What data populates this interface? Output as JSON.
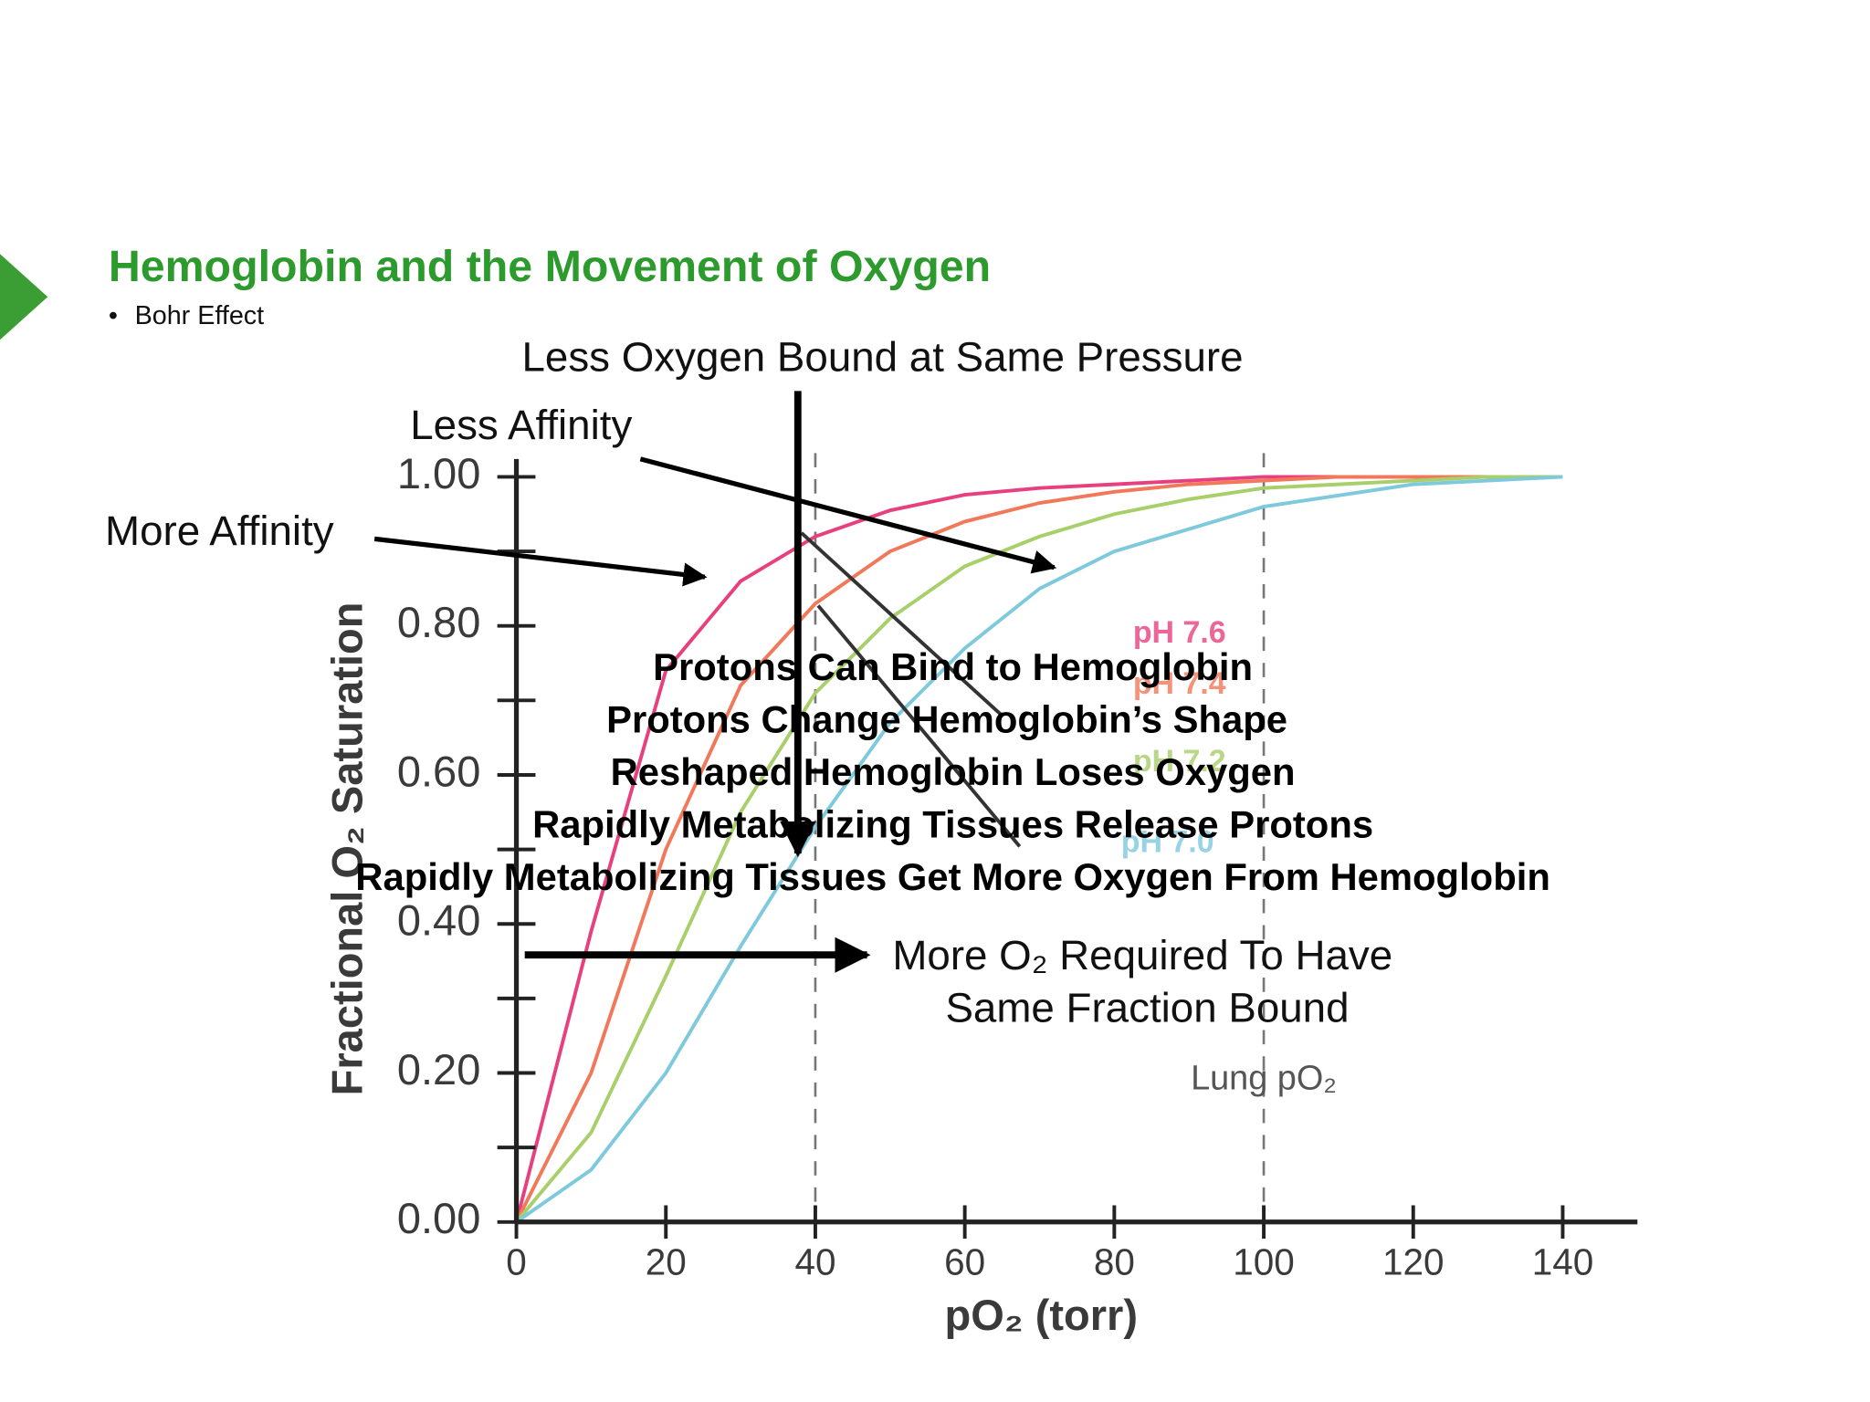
{
  "header": {
    "title": "Hemoglobin and the Movement of Oxygen",
    "bullet": "Bohr Effect"
  },
  "chart_data": {
    "type": "line",
    "x": [
      0,
      10,
      20,
      30,
      40,
      50,
      60,
      70,
      80,
      90,
      100,
      110,
      120,
      130,
      140
    ],
    "series": [
      {
        "name": "pH 7.6",
        "color": "#e8407f",
        "values": [
          0,
          0.39,
          0.74,
          0.86,
          0.92,
          0.955,
          0.976,
          0.985,
          0.99,
          0.995,
          1,
          1,
          1,
          1,
          1
        ]
      },
      {
        "name": "pH 7.4",
        "color": "#f2785a",
        "values": [
          0,
          0.2,
          0.5,
          0.72,
          0.83,
          0.9,
          0.94,
          0.965,
          0.98,
          0.99,
          0.995,
          1,
          1,
          1,
          1
        ]
      },
      {
        "name": "pH 7.2",
        "color": "#a8cf6a",
        "values": [
          0,
          0.12,
          0.33,
          0.55,
          0.71,
          0.81,
          0.88,
          0.92,
          0.95,
          0.97,
          0.985,
          0.99,
          0.995,
          1,
          1
        ]
      },
      {
        "name": "pH 7.0",
        "color": "#7ec9dc",
        "values": [
          0,
          0.07,
          0.2,
          0.37,
          0.53,
          0.67,
          0.77,
          0.85,
          0.9,
          0.93,
          0.96,
          0.975,
          0.99,
          0.995,
          1
        ]
      }
    ],
    "xlim": [
      0,
      150
    ],
    "ylim": [
      0,
      1
    ],
    "xticks": [
      0,
      20,
      40,
      60,
      80,
      100,
      120,
      140
    ],
    "yticks": [
      {
        "value": 0,
        "label": "0.00"
      },
      {
        "value": 0.2,
        "label": "0.20"
      },
      {
        "value": 0.4,
        "label": "0.40"
      },
      {
        "value": 0.6,
        "label": "0.60"
      },
      {
        "value": 0.8,
        "label": "0.80"
      },
      {
        "value": 1,
        "label": "1.00"
      }
    ],
    "yminor_ticks": [
      0.1,
      0.3,
      0.5,
      0.7,
      0.9
    ],
    "x_label": "pO₂ (torr)",
    "y_label": "Fractional O₂ Saturation",
    "reference_lines": [
      {
        "x": 40
      },
      {
        "x": 100,
        "label": "Lung pO₂"
      }
    ],
    "annotations": [
      "Less Oxygen Bound at Same Pressure",
      "Less Affinity",
      "More Affinity",
      "Protons Can Bind to Hemoglobin",
      "Protons Change Hemoglobin’s Shape",
      "Reshaped Hemoglobin Loses Oxygen",
      "Rapidly Metabolizing Tissues Release Protons",
      "Rapidly Metabolizing Tissues Get More Oxygen From Hemoglobin",
      "More O₂ Required To Have",
      "Same Fraction Bound"
    ]
  }
}
